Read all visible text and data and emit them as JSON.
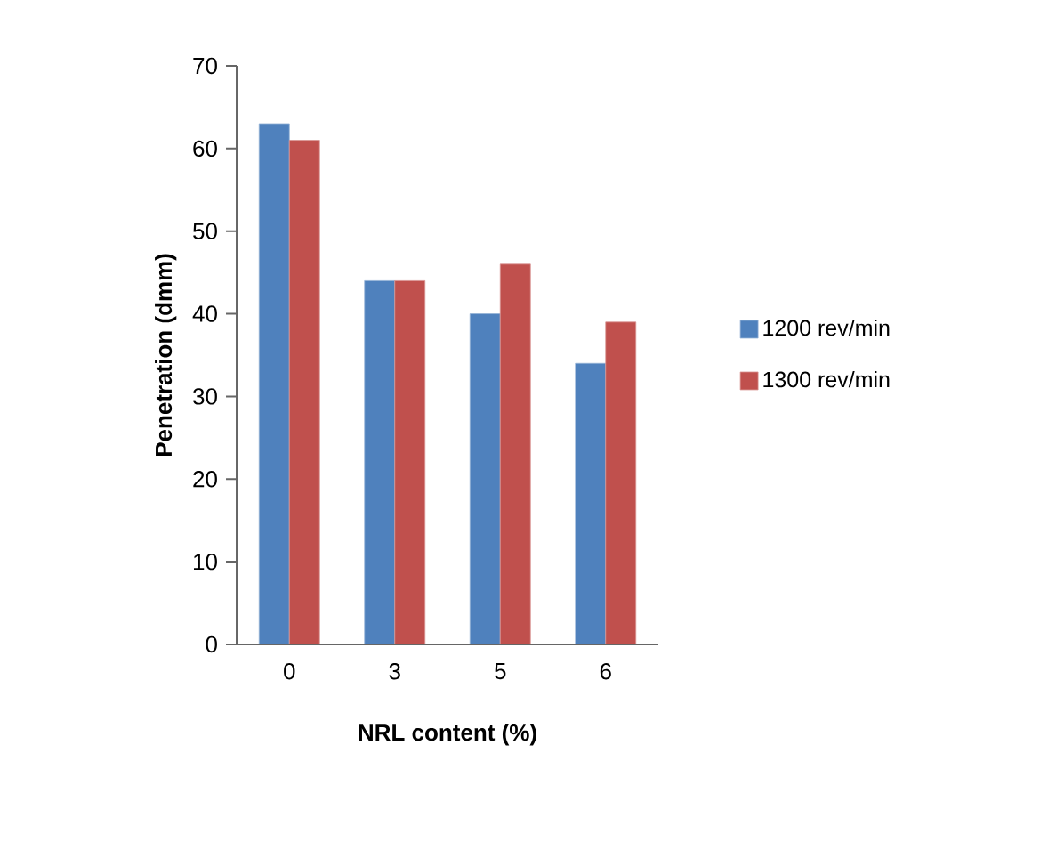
{
  "chart_data": {
    "type": "bar",
    "xlabel": "NRL content (%)",
    "ylabel": "Penetration (dmm)",
    "categories": [
      "0",
      "3",
      "5",
      "6"
    ],
    "series": [
      {
        "name": "1200 rev/min",
        "color": "#4f81bd",
        "values": [
          63,
          44,
          40,
          34
        ]
      },
      {
        "name": "1300 rev/min",
        "color": "#c0504d",
        "values": [
          61,
          44,
          46,
          39
        ]
      }
    ],
    "ylim": [
      0,
      70
    ],
    "yticks": [
      0,
      10,
      20,
      30,
      40,
      50,
      60,
      70
    ],
    "grid": false,
    "legend": "right"
  }
}
